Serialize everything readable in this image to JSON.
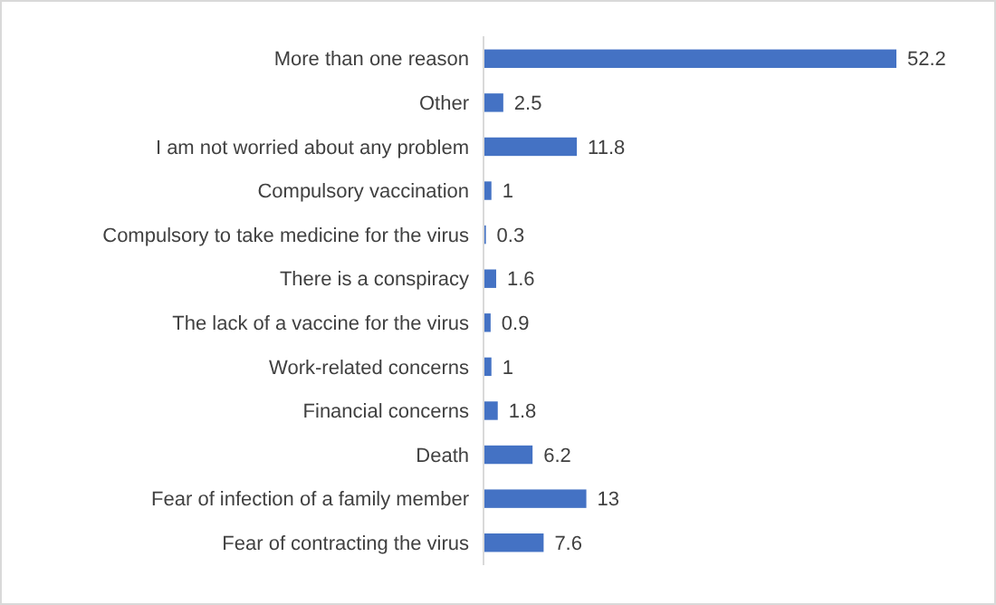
{
  "chart_data": {
    "type": "bar",
    "orientation": "horizontal",
    "data_labels": true,
    "color": "#4472c4",
    "categories": [
      "More than one reason",
      "Other",
      "I am not worried about any problem",
      "Compulsory vaccination",
      "Compulsory to take medicine for the virus",
      "There is a conspiracy",
      "The lack of a vaccine for the virus",
      "Work-related concerns",
      "Financial concerns",
      "Death",
      "Fear of infection of a family member",
      "Fear of contracting the virus"
    ],
    "values": [
      52.2,
      2.5,
      11.8,
      1,
      0.3,
      1.6,
      0.9,
      1,
      1.8,
      6.2,
      13,
      7.6
    ]
  }
}
